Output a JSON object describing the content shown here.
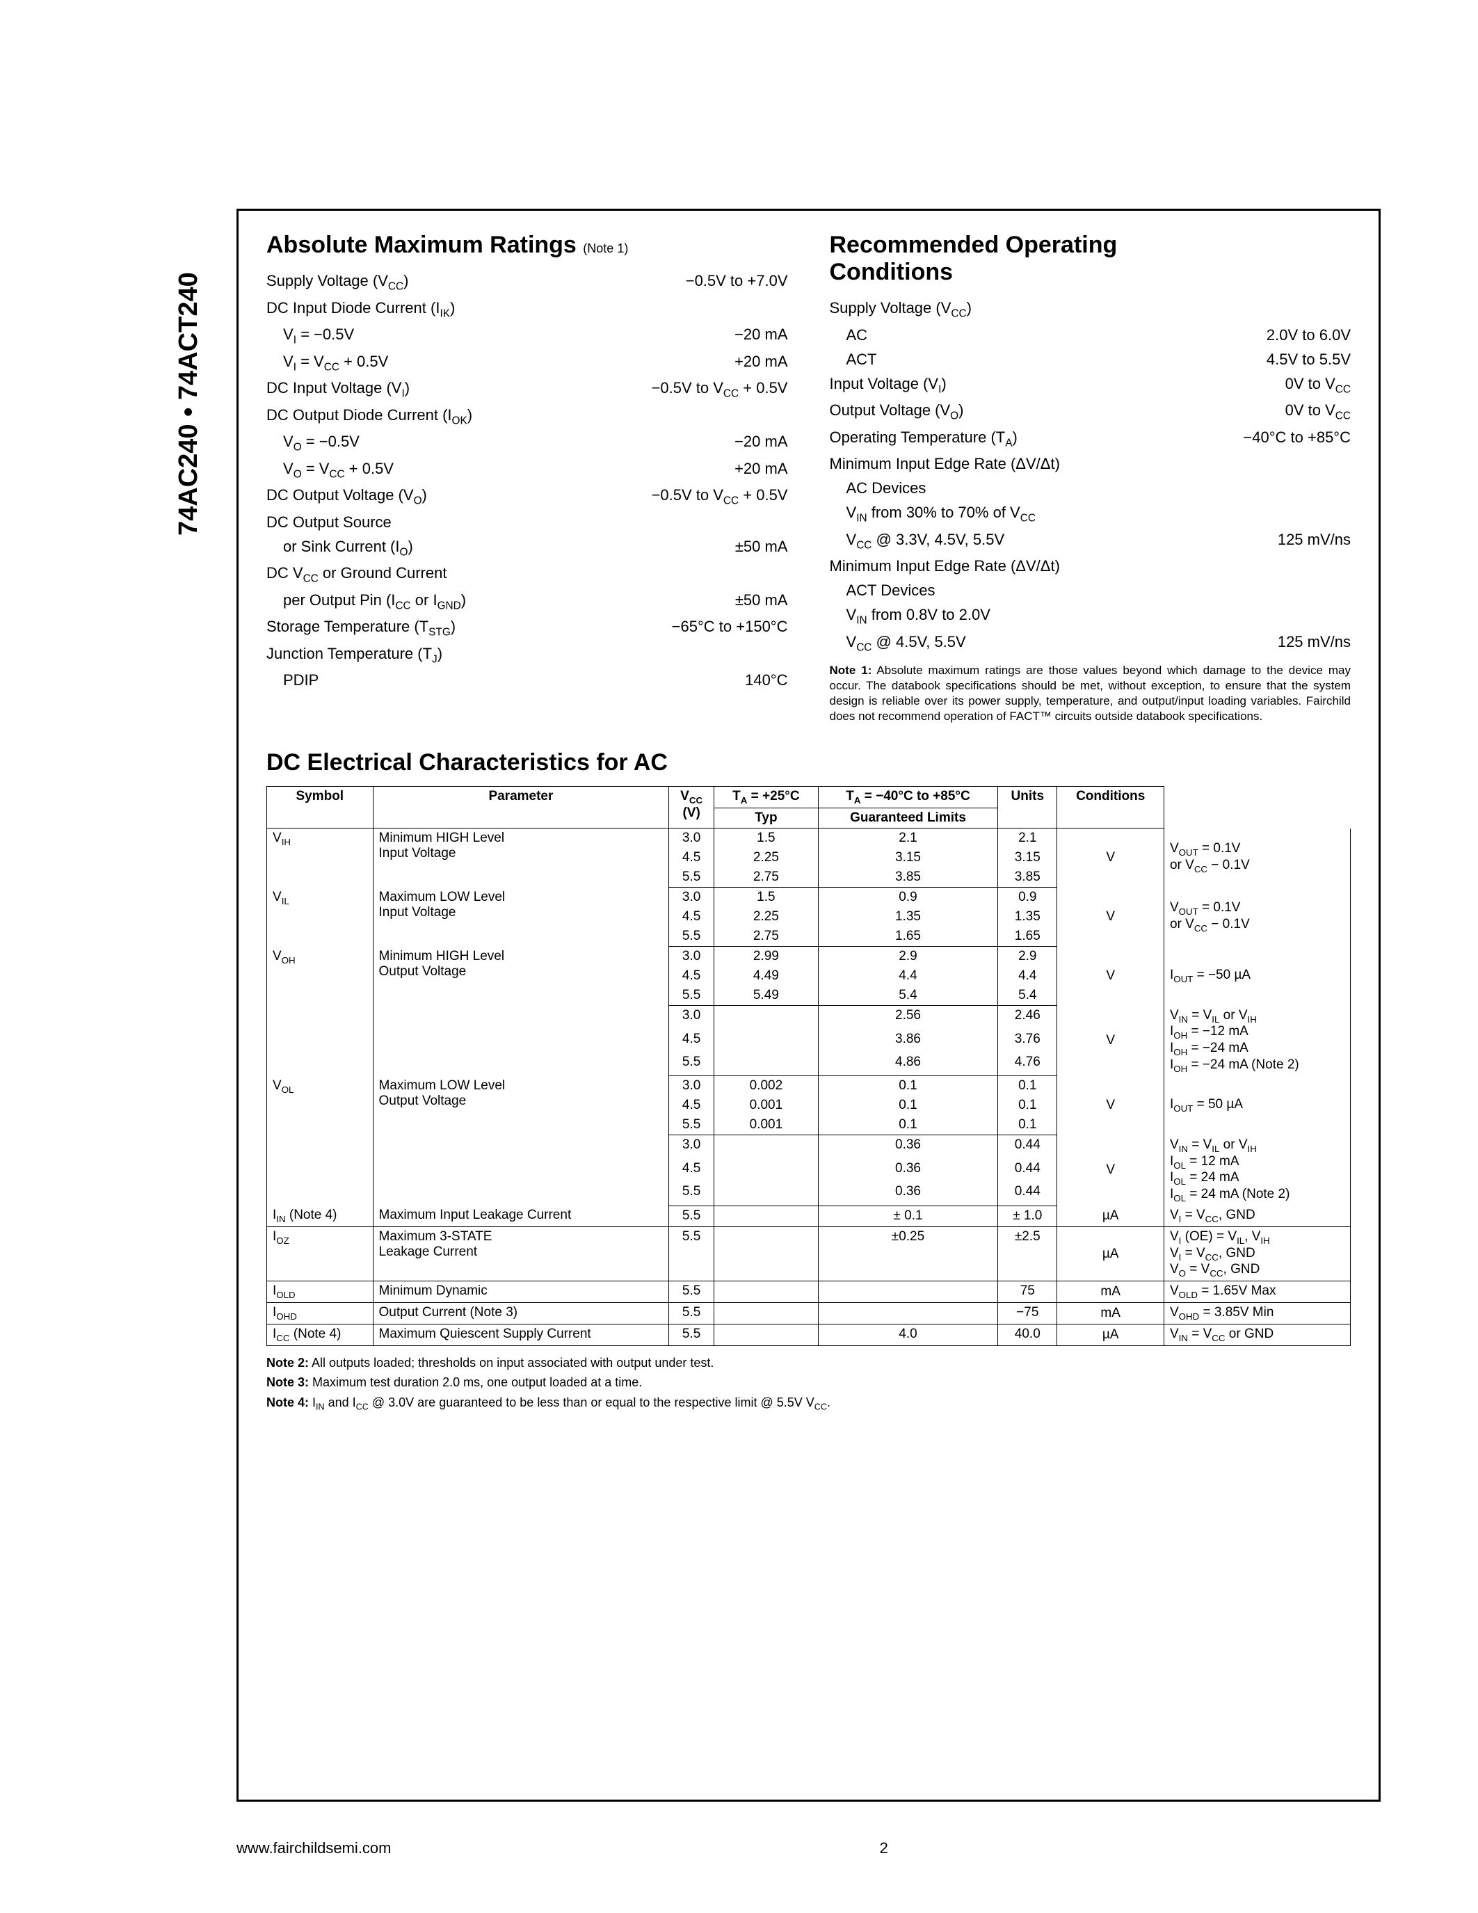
{
  "side_label": "74AC240 • 74ACT240",
  "amr": {
    "title": "Absolute Maximum Ratings",
    "note_ref": "(Note 1)",
    "rows": [
      {
        "label": "Supply Voltage (V<sub>CC</sub>)",
        "value": "−0.5V to +7.0V"
      },
      {
        "label": "DC Input Diode Current (I<sub>IK</sub>)",
        "value": ""
      },
      {
        "label": "V<sub>I</sub> = −0.5V",
        "value": "−20 mA",
        "indent": true
      },
      {
        "label": "V<sub>I</sub> = V<sub>CC</sub> + 0.5V",
        "value": "+20 mA",
        "indent": true
      },
      {
        "label": "DC Input Voltage (V<sub>I</sub>)",
        "value": "−0.5V to V<sub>CC</sub> + 0.5V"
      },
      {
        "label": "DC Output Diode Current (I<sub>OK</sub>)",
        "value": ""
      },
      {
        "label": "V<sub>O</sub> = −0.5V",
        "value": "−20 mA",
        "indent": true
      },
      {
        "label": "V<sub>O</sub> = V<sub>CC</sub> + 0.5V",
        "value": "+20 mA",
        "indent": true
      },
      {
        "label": "DC Output Voltage (V<sub>O</sub>)",
        "value": "−0.5V to V<sub>CC</sub> + 0.5V"
      },
      {
        "label": "DC Output Source",
        "value": ""
      },
      {
        "label": "or Sink Current (I<sub>O</sub>)",
        "value": "±50 mA",
        "indent": true
      },
      {
        "label": "DC V<sub>CC</sub> or Ground Current",
        "value": ""
      },
      {
        "label": "per Output Pin (I<sub>CC</sub> or I<sub>GND</sub>)",
        "value": "±50 mA",
        "indent": true
      },
      {
        "label": "Storage Temperature (T<sub>STG</sub>)",
        "value": "−65°C to +150°C"
      },
      {
        "label": "Junction Temperature (T<sub>J</sub>)",
        "value": ""
      },
      {
        "label": "PDIP",
        "value": "140°C",
        "indent": true
      }
    ]
  },
  "roc": {
    "title_line1": "Recommended Operating",
    "title_line2": "Conditions",
    "rows": [
      {
        "label": "Supply Voltage (V<sub>CC</sub>)",
        "value": ""
      },
      {
        "label": "AC",
        "value": "2.0V to 6.0V",
        "indent": true
      },
      {
        "label": "ACT",
        "value": "4.5V to 5.5V",
        "indent": true
      },
      {
        "label": "Input Voltage (V<sub>I</sub>)",
        "value": "0V to V<sub>CC</sub>"
      },
      {
        "label": "Output Voltage (V<sub>O</sub>)",
        "value": "0V to V<sub>CC</sub>"
      },
      {
        "label": "Operating Temperature (T<sub>A</sub>)",
        "value": "−40°C to +85°C"
      },
      {
        "label": "Minimum Input Edge Rate (ΔV/Δt)",
        "value": ""
      },
      {
        "label": "AC Devices",
        "value": "",
        "indent": true
      },
      {
        "label": "V<sub>IN</sub> from 30% to 70% of V<sub>CC</sub>",
        "value": "",
        "indent": true
      },
      {
        "label": "V<sub>CC</sub> @ 3.3V, 4.5V, 5.5V",
        "value": "125 mV/ns",
        "indent": true
      },
      {
        "label": "Minimum Input Edge Rate (ΔV/Δt)",
        "value": ""
      },
      {
        "label": "ACT Devices",
        "value": "",
        "indent": true
      },
      {
        "label": "V<sub>IN</sub> from 0.8V to 2.0V",
        "value": "",
        "indent": true
      },
      {
        "label": "V<sub>CC</sub> @ 4.5V, 5.5V",
        "value": "125 mV/ns",
        "indent": true
      }
    ],
    "note1": "<b>Note 1:</b> Absolute maximum ratings are those values beyond which damage to the device may occur. The databook specifications should be met, without exception, to ensure that the system design is reliable over its power supply, temperature, and output/input loading variables. Fairchild does not recommend operation of FACT™ circuits outside databook specifications."
  },
  "dc": {
    "title": "DC Electrical Characteristics for AC",
    "header": {
      "symbol": "Symbol",
      "parameter": "Parameter",
      "vcc": "V<sub>CC</sub><br>(V)",
      "ta25": "T<sub>A</sub> = +25°C",
      "ta40": "T<sub>A</sub> = −40°C to +85°C",
      "typ": "Typ",
      "gl": "Guaranteed Limits",
      "units": "Units",
      "conditions": "Conditions"
    },
    "groups": [
      {
        "symbol": "V<sub>IH</sub>",
        "param": "Minimum HIGH Level<br>Input Voltage",
        "vcc": [
          "3.0",
          "4.5",
          "5.5"
        ],
        "typ": [
          "1.5",
          "2.25",
          "2.75"
        ],
        "g25": [
          "2.1",
          "3.15",
          "3.85"
        ],
        "g40": [
          "2.1",
          "3.15",
          "3.85"
        ],
        "units": "V",
        "cond": "V<sub>OUT</sub> = 0.1V<br>or V<sub>CC</sub> − 0.1V"
      },
      {
        "symbol": "V<sub>IL</sub>",
        "param": "Maximum LOW Level<br>Input Voltage",
        "vcc": [
          "3.0",
          "4.5",
          "5.5"
        ],
        "typ": [
          "1.5",
          "2.25",
          "2.75"
        ],
        "g25": [
          "0.9",
          "1.35",
          "1.65"
        ],
        "g40": [
          "0.9",
          "1.35",
          "1.65"
        ],
        "units": "V",
        "cond": "V<sub>OUT</sub> = 0.1V<br>or V<sub>CC</sub> − 0.1V"
      },
      {
        "symbol": "V<sub>OH</sub>",
        "param": "Minimum HIGH Level<br>Output Voltage",
        "vcc": [
          "3.0",
          "4.5",
          "5.5"
        ],
        "typ": [
          "2.99",
          "4.49",
          "5.49"
        ],
        "g25": [
          "2.9",
          "4.4",
          "5.4"
        ],
        "g40": [
          "2.9",
          "4.4",
          "5.4"
        ],
        "units": "V",
        "cond": "I<sub>OUT</sub> = −50 µA"
      },
      {
        "symbol": "",
        "param": "",
        "vcc": [
          "3.0",
          "4.5",
          "5.5"
        ],
        "typ": [
          "",
          "",
          ""
        ],
        "g25": [
          "2.56",
          "3.86",
          "4.86"
        ],
        "g40": [
          "2.46",
          "3.76",
          "4.76"
        ],
        "units": "V",
        "cond": "V<sub>IN</sub> = V<sub>IL</sub> or V<sub>IH</sub><br>I<sub>OH</sub> = −12 mA<br>I<sub>OH</sub> = −24 mA<br>I<sub>OH</sub> = −24 mA (Note 2)"
      },
      {
        "symbol": "V<sub>OL</sub>",
        "param": "Maximum LOW Level<br>Output Voltage",
        "vcc": [
          "3.0",
          "4.5",
          "5.5"
        ],
        "typ": [
          "0.002",
          "0.001",
          "0.001"
        ],
        "g25": [
          "0.1",
          "0.1",
          "0.1"
        ],
        "g40": [
          "0.1",
          "0.1",
          "0.1"
        ],
        "units": "V",
        "cond": "I<sub>OUT</sub> = 50 µA"
      },
      {
        "symbol": "",
        "param": "",
        "vcc": [
          "3.0",
          "4.5",
          "5.5"
        ],
        "typ": [
          "",
          "",
          ""
        ],
        "g25": [
          "0.36",
          "0.36",
          "0.36"
        ],
        "g40": [
          "0.44",
          "0.44",
          "0.44"
        ],
        "units": "V",
        "cond": "V<sub>IN</sub> = V<sub>IL</sub> or V<sub>IH</sub><br>I<sub>OL</sub> = 12 mA<br>I<sub>OL</sub> = 24 mA<br>I<sub>OL</sub> = 24 mA (Note 2)"
      },
      {
        "symbol": "I<sub>IN</sub> (Note 4)",
        "param": "Maximum Input Leakage Current",
        "vcc": [
          "5.5"
        ],
        "typ": [
          ""
        ],
        "g25": [
          "± 0.1"
        ],
        "g40": [
          "± 1.0"
        ],
        "units": "µA",
        "cond": "V<sub>I</sub> = V<sub>CC</sub>, GND"
      },
      {
        "symbol": "I<sub>OZ</sub>",
        "param": "Maximum 3-STATE<br>Leakage Current",
        "vcc": [
          "5.5"
        ],
        "typ": [
          ""
        ],
        "g25": [
          "±0.25"
        ],
        "g40": [
          "±2.5"
        ],
        "units": "µA",
        "cond": "V<sub>I</sub> (OE) = V<sub>IL</sub>, V<sub>IH</sub><br>V<sub>I</sub> = V<sub>CC</sub>, GND<br>V<sub>O</sub> = V<sub>CC</sub>, GND"
      },
      {
        "symbol": "I<sub>OLD</sub>",
        "param": "Minimum Dynamic",
        "vcc": [
          "5.5"
        ],
        "typ": [
          ""
        ],
        "g25": [
          ""
        ],
        "g40": [
          "75"
        ],
        "units": "mA",
        "cond": "V<sub>OLD</sub> = 1.65V Max"
      },
      {
        "symbol": "I<sub>OHD</sub>",
        "param": "Output Current (Note 3)",
        "vcc": [
          "5.5"
        ],
        "typ": [
          ""
        ],
        "g25": [
          ""
        ],
        "g40": [
          "−75"
        ],
        "units": "mA",
        "cond": "V<sub>OHD</sub> = 3.85V Min"
      },
      {
        "symbol": "I<sub>CC</sub> (Note 4)",
        "param": "Maximum Quiescent Supply Current",
        "vcc": [
          "5.5"
        ],
        "typ": [
          ""
        ],
        "g25": [
          "4.0"
        ],
        "g40": [
          "40.0"
        ],
        "units": "µA",
        "cond": "V<sub>IN</sub> = V<sub>CC</sub> or GND"
      }
    ],
    "notes": [
      "<b>Note 2:</b> All outputs loaded; thresholds on input associated with output under test.",
      "<b>Note 3:</b> Maximum test duration 2.0 ms, one output loaded at a time.",
      "<b>Note 4:</b> I<sub>IN</sub> and I<sub>CC</sub> @ 3.0V are guaranteed to be less than or equal to the respective limit @ 5.5V V<sub>CC</sub>."
    ]
  },
  "footer": {
    "url": "www.fairchildsemi.com",
    "page": "2"
  }
}
